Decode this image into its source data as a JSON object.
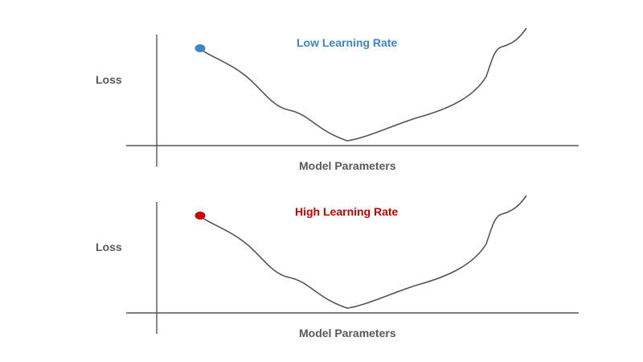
{
  "panels": [
    {
      "title": "Low Learning Rate",
      "title_color": "#3d85c6",
      "dot_color": "#3d85c6",
      "ylabel": "Loss",
      "xlabel": "Model Parameters"
    },
    {
      "title": "High Learning Rate",
      "title_color": "#cc0000",
      "dot_color": "#cc0000",
      "ylabel": "Loss",
      "xlabel": "Model Parameters"
    }
  ]
}
